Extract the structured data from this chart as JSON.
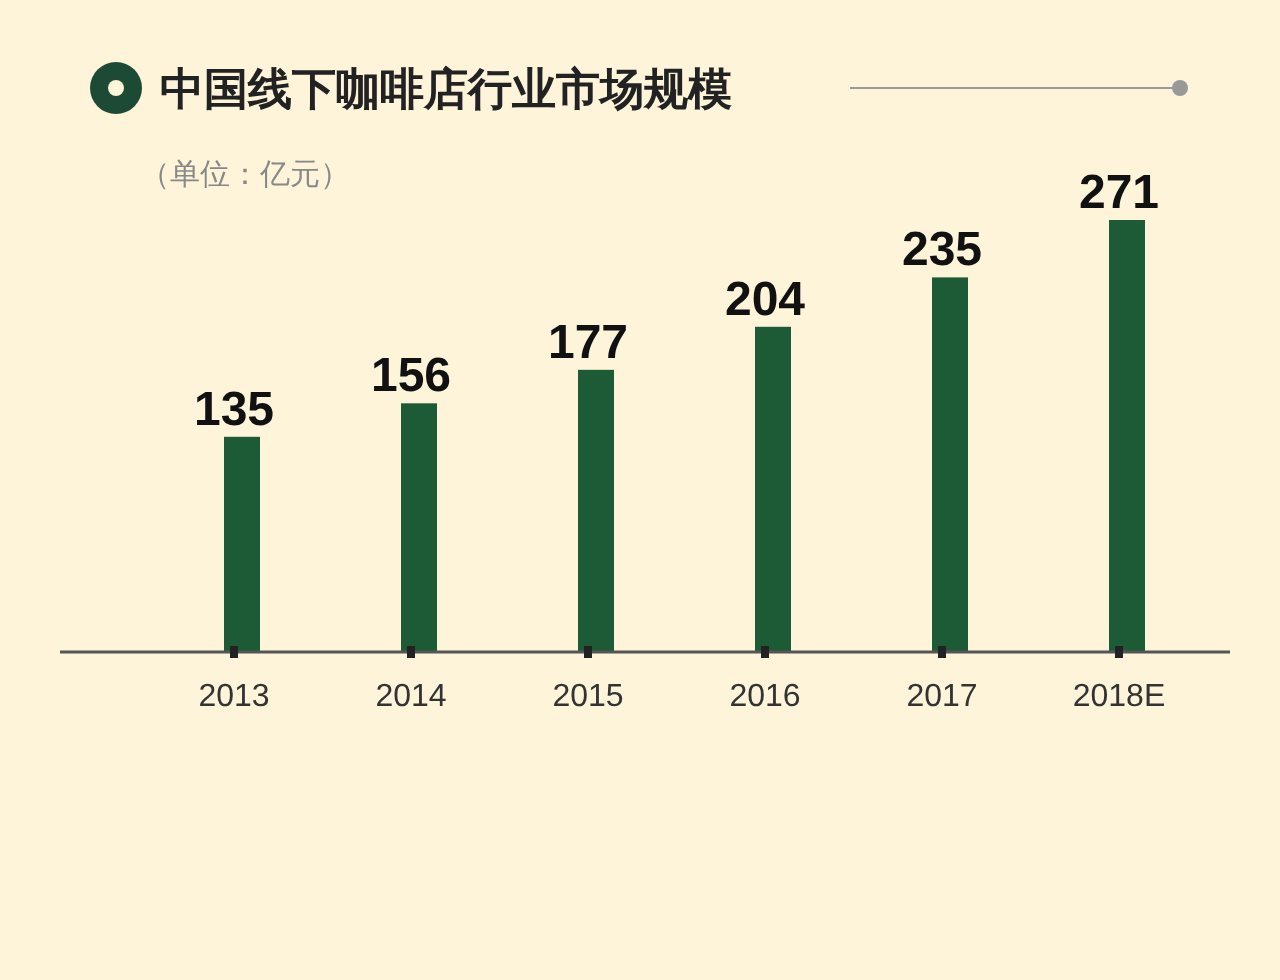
{
  "chart_data": {
    "type": "bar",
    "title": "中国线下咖啡店行业市场规模",
    "subtitle": "（单位：亿元）",
    "categories": [
      "2013",
      "2014",
      "2015",
      "2016",
      "2017",
      "2018E"
    ],
    "values": [
      135,
      156,
      177,
      204,
      235,
      271
    ],
    "color": "#1d5a36",
    "data_labels": true
  }
}
